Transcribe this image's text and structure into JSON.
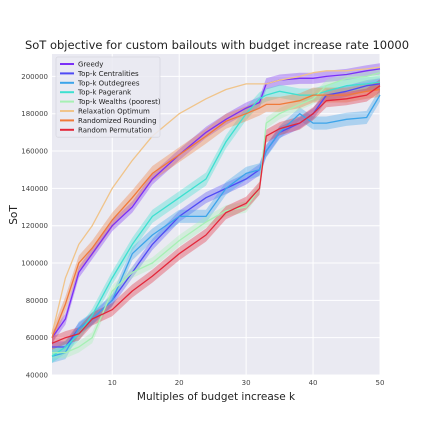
{
  "chart_data": {
    "type": "line",
    "title": "SoT objective for custom bailouts with budget increase rate 10000",
    "xlabel": "Multiples of budget increase k",
    "ylabel": "SoT",
    "xlim": [
      1,
      50
    ],
    "ylim": [
      40000,
      212000
    ],
    "xticks": [
      10,
      20,
      30,
      40,
      50
    ],
    "yticks": [
      40000,
      60000,
      80000,
      100000,
      120000,
      140000,
      160000,
      180000,
      200000
    ],
    "xtick_labels": [
      "10",
      "20",
      "30",
      "40",
      "50"
    ],
    "ytick_labels": [
      "40000",
      "60000",
      "80000",
      "100000",
      "120000",
      "140000",
      "160000",
      "180000",
      "200000"
    ],
    "grid": true,
    "legend_position": "top-left",
    "x": [
      1,
      3,
      5,
      7,
      10,
      13,
      16,
      20,
      24,
      27,
      30,
      32,
      33,
      35,
      38,
      40,
      42,
      45,
      48,
      50
    ],
    "series": [
      {
        "name": "Greedy",
        "color": "#7b2ff7",
        "band": 3000,
        "values": [
          60000,
          70000,
          95000,
          105000,
          120000,
          130000,
          145000,
          158000,
          170000,
          177000,
          183000,
          186000,
          196000,
          198000,
          199000,
          199000,
          200000,
          201000,
          203000,
          204000
        ]
      },
      {
        "name": "Top-k Centralities",
        "color": "#4f4af5",
        "band": 3000,
        "values": [
          55000,
          55000,
          65000,
          70000,
          80000,
          95000,
          110000,
          125000,
          135000,
          140000,
          145000,
          150000,
          160000,
          170000,
          175000,
          180000,
          190000,
          192000,
          195000,
          196000
        ]
      },
      {
        "name": "Top-k Outdegrees",
        "color": "#3ca4ea",
        "band": 3500,
        "values": [
          50000,
          52000,
          65000,
          70000,
          80000,
          105000,
          115000,
          125000,
          125000,
          140000,
          148000,
          150000,
          160000,
          170000,
          180000,
          175000,
          175000,
          177000,
          178000,
          190000
        ]
      },
      {
        "name": "Top-k Pagerank",
        "color": "#3de0d0",
        "band": 3500,
        "values": [
          50000,
          55000,
          62000,
          72000,
          92000,
          110000,
          125000,
          135000,
          145000,
          165000,
          180000,
          188000,
          190000,
          192000,
          190000,
          190000,
          192000,
          195000,
          196000,
          197000
        ]
      },
      {
        "name": "Top-k Wealths (poorest)",
        "color": "#a6f0b4",
        "band": 3000,
        "values": [
          52000,
          52000,
          55000,
          60000,
          85000,
          95000,
          100000,
          112000,
          122000,
          128000,
          130000,
          140000,
          175000,
          180000,
          185000,
          188000,
          195000,
          199000,
          200000,
          202000
        ]
      },
      {
        "name": "Relaxation Optimum",
        "color": "#f0c48a",
        "band": 0,
        "values": [
          62000,
          92000,
          110000,
          120000,
          140000,
          155000,
          168000,
          180000,
          188000,
          193000,
          196000,
          196000,
          196000,
          198000,
          200000,
          202000,
          203000,
          203000,
          204000,
          205000
        ]
      },
      {
        "name": "Randomized Rounding",
        "color": "#f07a3a",
        "band": 4000,
        "values": [
          60000,
          78000,
          100000,
          108000,
          123000,
          135000,
          148000,
          158000,
          168000,
          176000,
          180000,
          183000,
          185000,
          185000,
          187000,
          190000,
          190000,
          190000,
          192000,
          193000
        ]
      },
      {
        "name": "Random Permutation",
        "color": "#e3273a",
        "band": 3500,
        "values": [
          57000,
          60000,
          62000,
          70000,
          75000,
          85000,
          93000,
          105000,
          115000,
          127000,
          132000,
          140000,
          168000,
          172000,
          175000,
          180000,
          187000,
          188000,
          190000,
          195000
        ]
      }
    ]
  }
}
